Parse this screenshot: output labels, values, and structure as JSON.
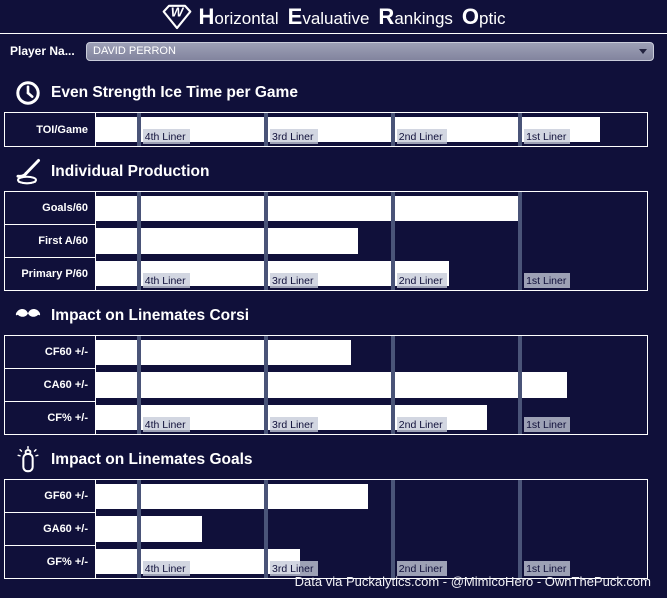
{
  "header": {
    "logo_name": "hero-gem-logo",
    "title_words": [
      {
        "cap": "H",
        "rest": "orizontal"
      },
      {
        "cap": "E",
        "rest": "valuative"
      },
      {
        "cap": "R",
        "rest": "ankings"
      },
      {
        "cap": "O",
        "rest": "ptic"
      }
    ]
  },
  "player": {
    "label": "Player Na...",
    "selected_value": "DAVID PERRON"
  },
  "liner_markers": {
    "labels": [
      "4th Liner",
      "3rd Liner",
      "2nd Liner",
      "1st Liner"
    ],
    "positions_pct": [
      7.4,
      30.5,
      53.5,
      76.6
    ]
  },
  "sections": [
    {
      "icon": "clock-icon",
      "title": "Even Strength Ice Time per Game",
      "rows": [
        {
          "label": "TOI/Game",
          "value_pct": 91.5
        }
      ]
    },
    {
      "icon": "hockey-stick-puck-icon",
      "title": "Individual Production",
      "rows": [
        {
          "label": "Goals/60",
          "value_pct": 77.1
        },
        {
          "label": "First A/60",
          "value_pct": 47.5
        },
        {
          "label": "Primary P/60",
          "value_pct": 64.1
        }
      ]
    },
    {
      "icon": "mustache-icon",
      "title": "Impact on Linemates Corsi",
      "rows": [
        {
          "label": "CF60 +/-",
          "value_pct": 46.3
        },
        {
          "label": "CA60 +/-",
          "value_pct": 85.5
        },
        {
          "label": "CF% +/-",
          "value_pct": 71.0
        }
      ]
    },
    {
      "icon": "baby-bottle-icon",
      "title": "Impact on Linemates Goals",
      "rows": [
        {
          "label": "GF60 +/-",
          "value_pct": 49.4
        },
        {
          "label": "GA60 +/-",
          "value_pct": 19.2
        },
        {
          "label": "GF% +/-",
          "value_pct": 37.0
        }
      ]
    }
  ],
  "footer": {
    "credit": "Data via Puckalytics.com - @MimicoHero - OwnThePuck.com"
  },
  "colors": {
    "background": "#10103a",
    "bar_fill": "#ffffff",
    "table_border": "#ffffff",
    "threshold_line": "#4a5478",
    "chip_background": "#c5cad8",
    "chip_text": "#10103a",
    "dropdown_background": "#8f91ab",
    "text": "#ffffff"
  },
  "chart_data": [
    {
      "type": "bar",
      "title": "Even Strength Ice Time per Game",
      "orientation": "horizontal",
      "categories": [
        "TOI/Game"
      ],
      "values": [
        91.5
      ],
      "units": "percent of chart width (no numeric axis shown)",
      "markers": {
        "labels": [
          "4th Liner",
          "3rd Liner",
          "2nd Liner",
          "1st Liner"
        ],
        "positions": [
          7.4,
          30.5,
          53.5,
          76.6
        ]
      },
      "xlim": [
        0,
        100
      ],
      "grid": false,
      "legend": false
    },
    {
      "type": "bar",
      "title": "Individual Production",
      "orientation": "horizontal",
      "categories": [
        "Goals/60",
        "First A/60",
        "Primary P/60"
      ],
      "values": [
        77.1,
        47.5,
        64.1
      ],
      "units": "percent of chart width (no numeric axis shown)",
      "markers": {
        "labels": [
          "4th Liner",
          "3rd Liner",
          "2nd Liner",
          "1st Liner"
        ],
        "positions": [
          7.4,
          30.5,
          53.5,
          76.6
        ]
      },
      "xlim": [
        0,
        100
      ],
      "grid": false,
      "legend": false
    },
    {
      "type": "bar",
      "title": "Impact on Linemates Corsi",
      "orientation": "horizontal",
      "categories": [
        "CF60 +/-",
        "CA60 +/-",
        "CF% +/-"
      ],
      "values": [
        46.3,
        85.5,
        71.0
      ],
      "units": "percent of chart width (no numeric axis shown)",
      "markers": {
        "labels": [
          "4th Liner",
          "3rd Liner",
          "2nd Liner",
          "1st Liner"
        ],
        "positions": [
          7.4,
          30.5,
          53.5,
          76.6
        ]
      },
      "xlim": [
        0,
        100
      ],
      "grid": false,
      "legend": false
    },
    {
      "type": "bar",
      "title": "Impact on Linemates Goals",
      "orientation": "horizontal",
      "categories": [
        "GF60 +/-",
        "GA60 +/-",
        "GF% +/-"
      ],
      "values": [
        49.4,
        19.2,
        37.0
      ],
      "units": "percent of chart width (no numeric axis shown)",
      "markers": {
        "labels": [
          "4th Liner",
          "3rd Liner",
          "2nd Liner",
          "1st Liner"
        ],
        "positions": [
          7.4,
          30.5,
          53.5,
          76.6
        ]
      },
      "xlim": [
        0,
        100
      ],
      "grid": false,
      "legend": false
    }
  ]
}
